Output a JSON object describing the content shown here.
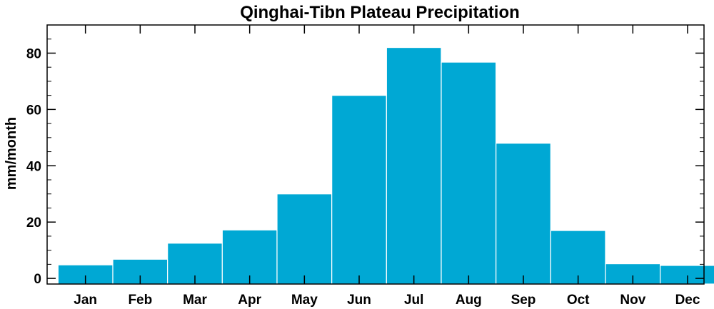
{
  "chart_data": {
    "type": "bar",
    "title": "Qinghai-Tibn Plateau Precipitation",
    "xlabel": "",
    "ylabel": "mm/month",
    "categories": [
      "Jan",
      "Feb",
      "Mar",
      "Apr",
      "May",
      "Jun",
      "Jul",
      "Aug",
      "Sep",
      "Oct",
      "Nov",
      "Dec"
    ],
    "values": [
      4.8,
      6.8,
      12.5,
      17.2,
      30,
      65,
      82,
      76.8,
      48,
      17,
      5.2,
      4.6
    ],
    "ylim": [
      -2,
      90
    ],
    "yticks": [
      0,
      20,
      40,
      60,
      80
    ],
    "grid": false,
    "bar_color": "#00a8d4",
    "bar_edge_color": "#ffffff"
  }
}
